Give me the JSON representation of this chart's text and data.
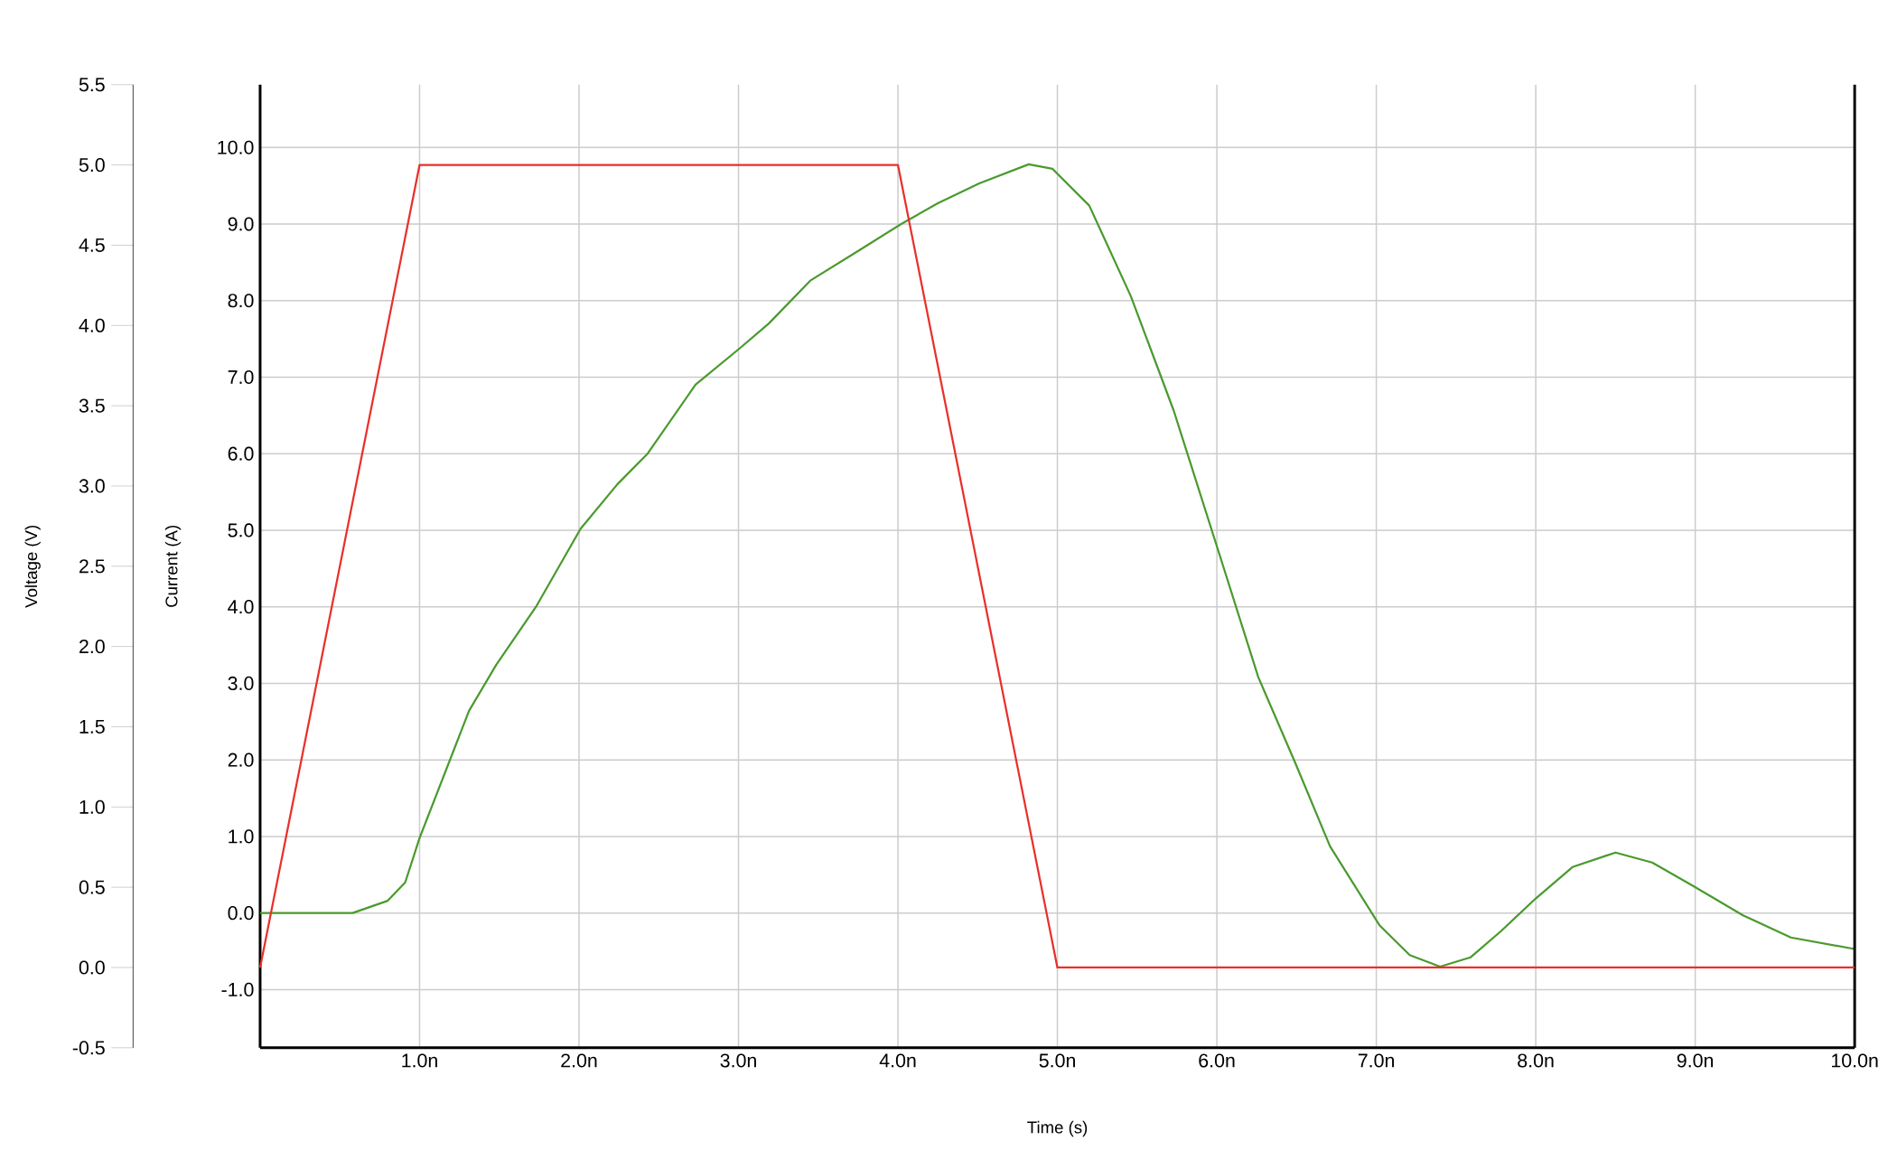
{
  "chart_data": {
    "type": "line",
    "xlabel": "Time (s)",
    "ylabel": "Current (A)",
    "y2label": "Voltage (V)",
    "xlim": [
      0,
      10
    ],
    "xticks": [
      {
        "value": 1,
        "label": "1.0n"
      },
      {
        "value": 2,
        "label": "2.0n"
      },
      {
        "value": 3,
        "label": "3.0n"
      },
      {
        "value": 4,
        "label": "4.0n"
      },
      {
        "value": 5,
        "label": "5.0n"
      },
      {
        "value": 6,
        "label": "6.0n"
      },
      {
        "value": 7,
        "label": "7.0n"
      },
      {
        "value": 8,
        "label": "8.0n"
      },
      {
        "value": 9,
        "label": "9.0n"
      },
      {
        "value": 10,
        "label": "10.0n"
      }
    ],
    "ylim": [
      -1.76,
      10.82
    ],
    "yticks": [
      {
        "value": -1,
        "label": "-1.0"
      },
      {
        "value": 0,
        "label": "0.0"
      },
      {
        "value": 1,
        "label": "1.0"
      },
      {
        "value": 2,
        "label": "2.0"
      },
      {
        "value": 3,
        "label": "3.0"
      },
      {
        "value": 4,
        "label": "4.0"
      },
      {
        "value": 5,
        "label": "5.0"
      },
      {
        "value": 6,
        "label": "6.0"
      },
      {
        "value": 7,
        "label": "7.0"
      },
      {
        "value": 8,
        "label": "8.0"
      },
      {
        "value": 9,
        "label": "9.0"
      },
      {
        "value": 10,
        "label": "10.0"
      }
    ],
    "y2lim": [
      -0.5,
      5.5
    ],
    "y2ticks": [
      {
        "value": -0.5,
        "label": "-0.5"
      },
      {
        "value": 0,
        "label": "0.0"
      },
      {
        "value": 0.5,
        "label": "0.5"
      },
      {
        "value": 1,
        "label": "1.0"
      },
      {
        "value": 1.5,
        "label": "1.5"
      },
      {
        "value": 2,
        "label": "2.0"
      },
      {
        "value": 2.5,
        "label": "2.5"
      },
      {
        "value": 3,
        "label": "3.0"
      },
      {
        "value": 3.5,
        "label": "3.5"
      },
      {
        "value": 4,
        "label": "4.0"
      },
      {
        "value": 4.5,
        "label": "4.5"
      },
      {
        "value": 5,
        "label": "5.0"
      },
      {
        "value": 5.5,
        "label": "5.5"
      }
    ],
    "grid": true,
    "marker": "none",
    "line_style": "solid",
    "series": [
      {
        "color": "#e8302a",
        "axis": "y2",
        "x": [
          0,
          1,
          4,
          5,
          10
        ],
        "values": [
          0,
          5,
          5,
          0,
          0
        ]
      },
      {
        "color": "#4a9a2e",
        "axis": "y",
        "x": [
          0,
          0.58,
          0.8,
          0.91,
          1,
          1.31,
          1.48,
          1.73,
          2.01,
          2.24,
          2.43,
          2.73,
          3.01,
          3.19,
          3.45,
          3.76,
          4.02,
          4.25,
          4.51,
          4.82,
          4.97,
          5.2,
          5.46,
          5.73,
          6.02,
          6.26,
          6.49,
          6.71,
          7.02,
          7.21,
          7.4,
          7.59,
          7.78,
          8,
          8.23,
          8.5,
          8.73,
          8.99,
          9.3,
          9.6,
          10
        ],
        "values": [
          0,
          0,
          0.16,
          0.4,
          0.98,
          2.64,
          3.24,
          4.0,
          5.02,
          5.6,
          6.0,
          6.9,
          7.38,
          7.7,
          8.26,
          8.66,
          9.0,
          9.27,
          9.53,
          9.78,
          9.72,
          9.24,
          8.06,
          6.56,
          4.66,
          3.08,
          1.97,
          0.87,
          -0.16,
          -0.55,
          -0.7,
          -0.58,
          -0.24,
          0.19,
          0.6,
          0.79,
          0.66,
          0.35,
          -0.03,
          -0.32,
          -0.47
        ]
      }
    ]
  }
}
